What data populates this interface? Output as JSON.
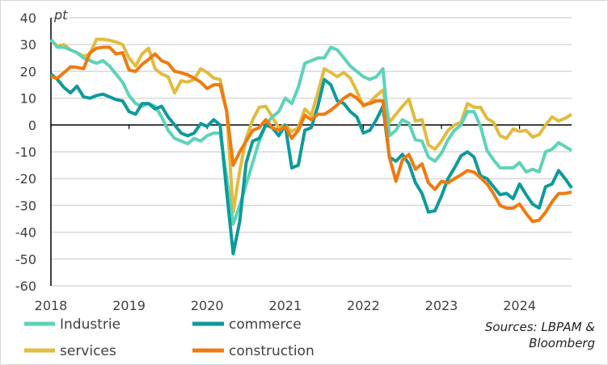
{
  "chart_data": {
    "type": "line",
    "unit_label": "pt",
    "ylim": [
      -60,
      40
    ],
    "yticks": [
      40,
      30,
      20,
      10,
      0,
      -10,
      -20,
      -30,
      -40,
      -50,
      -60
    ],
    "xticks": [
      "2018",
      "2019",
      "2020",
      "2021",
      "2022",
      "2023",
      "2024"
    ],
    "grid": "horizontal",
    "legend": "bottom",
    "frequency": "monthly",
    "x_start": "2018-01",
    "x_end": "2024-09",
    "series": [
      {
        "name": "Industrie",
        "color": "#5DD3B8",
        "values": [
          32,
          29,
          29,
          28,
          27,
          25,
          24,
          23,
          24,
          22,
          19,
          16,
          11,
          8,
          7,
          8,
          7,
          3,
          -2,
          -5,
          -6,
          -7,
          -5,
          -6,
          -4,
          -3,
          -3,
          -20,
          -37,
          -30,
          -22,
          -14,
          -6,
          0,
          3,
          5,
          10,
          8,
          14,
          23,
          24,
          25,
          25,
          29,
          28,
          25,
          22,
          20,
          18,
          17,
          18,
          21,
          -4,
          -2,
          2,
          0.6,
          -5.5,
          -6,
          -12,
          -13.5,
          -10.5,
          -5.5,
          -2,
          0,
          5,
          5,
          -0.5,
          -9.5,
          -13,
          -16,
          -16,
          -16,
          -14,
          -17.5,
          -16.5,
          -17.5,
          -10,
          -9,
          -6.6,
          -8,
          -9.5
        ]
      },
      {
        "name": "commerce",
        "color": "#0E9A9B",
        "values": [
          19,
          17,
          14,
          12,
          14.5,
          10.5,
          10,
          11,
          11.5,
          10.5,
          9.5,
          9,
          5,
          4,
          8,
          8,
          6,
          7,
          3,
          0,
          -3,
          -4,
          -3,
          0.5,
          -0.5,
          2,
          0,
          -25,
          -48,
          -36,
          -14,
          -6,
          -5,
          0,
          -1,
          -4,
          0,
          -16,
          -15,
          -2,
          -1,
          7,
          17,
          15,
          9,
          8,
          5,
          3,
          -3,
          -2,
          2,
          7,
          -12,
          -13.5,
          -11,
          -14.5,
          -21.5,
          -25.5,
          -32.5,
          -32,
          -26.5,
          -20,
          -16,
          -11.5,
          -10,
          -12,
          -19,
          -20,
          -23,
          -26,
          -25.5,
          -27.5,
          -22,
          -26,
          -29.5,
          -31,
          -23,
          -22,
          -17,
          -20,
          -23.5
        ]
      },
      {
        "name": "services",
        "color": "#E2BB3F",
        "values": [
          31.6,
          29.5,
          30,
          28,
          27,
          25.6,
          26.5,
          32,
          32,
          31.6,
          31,
          30,
          25,
          22,
          26.5,
          28.6,
          21,
          19,
          18,
          12,
          16.5,
          16,
          17,
          21,
          19.6,
          17.5,
          17,
          5,
          -32.5,
          -17,
          -5,
          2,
          6.6,
          7,
          3,
          -1,
          0,
          -2.4,
          -1,
          6,
          3.6,
          12,
          21,
          19.6,
          18,
          19.6,
          17.5,
          12.6,
          7,
          8.4,
          11,
          13,
          1,
          4,
          7,
          9.6,
          1.5,
          2,
          -7.5,
          -9,
          -6,
          -2,
          0,
          1,
          8,
          6.6,
          6.6,
          2.4,
          1,
          -4,
          -5,
          -1.5,
          -2.4,
          -2,
          -4.5,
          -3.6,
          0,
          3,
          1.5,
          2.5,
          4
        ]
      },
      {
        "name": "construction",
        "color": "#F07A10",
        "values": [
          18,
          17.5,
          19.5,
          21.7,
          21.5,
          21,
          27,
          28.6,
          29,
          29,
          26.5,
          27,
          20.5,
          20,
          22.6,
          24.5,
          26.5,
          24,
          23,
          20,
          19.5,
          18.7,
          17.5,
          16,
          13.6,
          15,
          15,
          5,
          -15,
          -10,
          -6,
          -2,
          -1,
          2,
          -1,
          -2,
          -0.6,
          -5,
          -2,
          3.6,
          2,
          4,
          4,
          5.5,
          7.5,
          10,
          11.5,
          10,
          7.5,
          8,
          9,
          9,
          -12,
          -21,
          -13,
          -11,
          -16.5,
          -14.5,
          -21.6,
          -24,
          -21,
          -21.6,
          -20,
          -18.6,
          -17,
          -17.6,
          -19.6,
          -22,
          -25.6,
          -30,
          -31,
          -31,
          -29.5,
          -33,
          -36,
          -35.5,
          -32.5,
          -28.6,
          -25.6,
          -25.5,
          -25
        ]
      }
    ]
  },
  "source": {
    "line1": "Sources: LBPAM &",
    "line2": "Bloomberg"
  }
}
